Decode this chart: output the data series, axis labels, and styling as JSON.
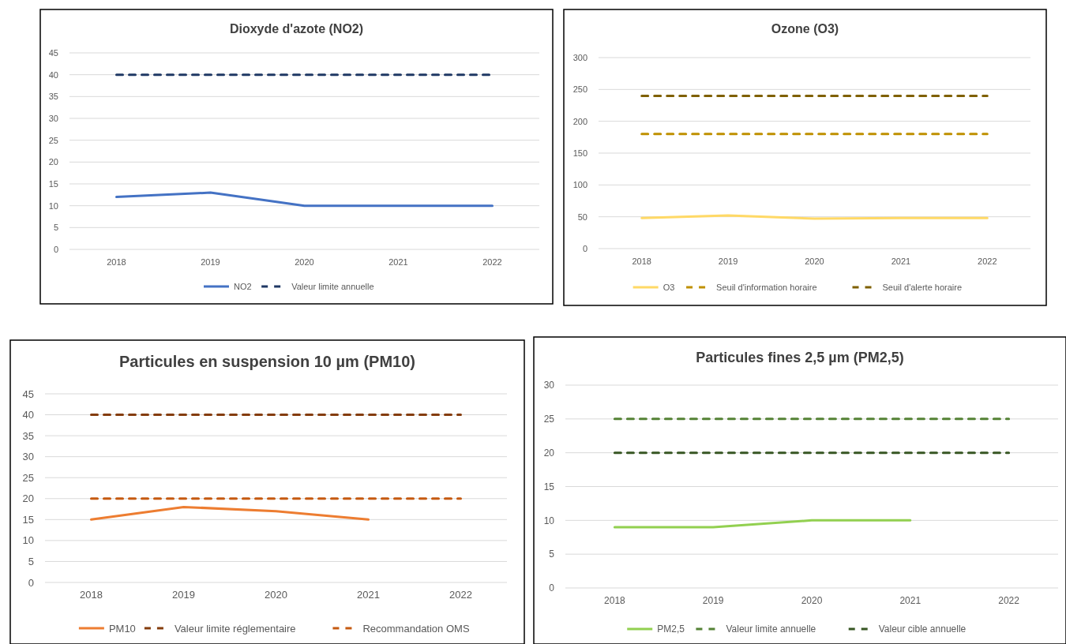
{
  "chart_data": [
    {
      "type": "line",
      "title": "Dioxyde d'azote (NO2)",
      "categories": [
        "2018",
        "2019",
        "2020",
        "2021",
        "2022"
      ],
      "ylim": [
        0,
        45
      ],
      "yticks": [
        0,
        5,
        10,
        15,
        20,
        25,
        30,
        35,
        40,
        45
      ],
      "grid": "y",
      "legend": "bottom",
      "series": [
        {
          "name": "NO2",
          "color": "#4472c4",
          "values": [
            12,
            13,
            10,
            10,
            10
          ],
          "line_style": "solid"
        },
        {
          "name": "Valeur limite annuelle",
          "color": "#1f3864",
          "values": [
            40,
            40,
            40,
            40,
            40
          ],
          "line_style": "dashed"
        }
      ]
    },
    {
      "type": "line",
      "title": "Ozone (O3)",
      "categories": [
        "2018",
        "2019",
        "2020",
        "2021",
        "2022"
      ],
      "ylim": [
        0,
        300
      ],
      "yticks": [
        0,
        50,
        100,
        150,
        200,
        250,
        300
      ],
      "grid": "y",
      "legend": "bottom",
      "series": [
        {
          "name": "O3",
          "color": "#ffd966",
          "values": [
            48,
            52,
            47,
            48,
            48
          ],
          "line_style": "solid"
        },
        {
          "name": "Seuil d'information horaire",
          "color": "#bf9000",
          "values": [
            180,
            180,
            180,
            180,
            180
          ],
          "line_style": "dashed"
        },
        {
          "name": "Seuil d'alerte horaire",
          "color": "#7f6000",
          "values": [
            240,
            240,
            240,
            240,
            240
          ],
          "line_style": "dashed"
        }
      ]
    },
    {
      "type": "line",
      "title": "Particules en suspension 10 µm (PM10)",
      "categories": [
        "2018",
        "2019",
        "2020",
        "2021",
        "2022"
      ],
      "ylim": [
        0,
        45
      ],
      "yticks": [
        0,
        5,
        10,
        15,
        20,
        25,
        30,
        35,
        40,
        45
      ],
      "grid": "y",
      "legend": "bottom",
      "series": [
        {
          "name": "PM10",
          "color": "#ed7d31",
          "values": [
            15,
            18,
            17,
            15,
            null
          ],
          "line_style": "solid"
        },
        {
          "name": "Valeur limite réglementaire",
          "color": "#843c0c",
          "values": [
            40,
            40,
            40,
            40,
            40
          ],
          "line_style": "dashed"
        },
        {
          "name": "Recommandation OMS",
          "color": "#c55a11",
          "values": [
            20,
            20,
            20,
            20,
            20
          ],
          "line_style": "dashed"
        }
      ]
    },
    {
      "type": "line",
      "title": "Particules fines 2,5 µm (PM2,5)",
      "categories": [
        "2018",
        "2019",
        "2020",
        "2021",
        "2022"
      ],
      "ylim": [
        0,
        30
      ],
      "yticks": [
        0,
        5,
        10,
        15,
        20,
        25,
        30
      ],
      "grid": "y",
      "legend": "bottom",
      "series": [
        {
          "name": "PM2,5",
          "color": "#92d050",
          "values": [
            9,
            9,
            10,
            10,
            null
          ],
          "line_style": "solid"
        },
        {
          "name": "Valeur limite annuelle",
          "color": "#548235",
          "values": [
            25,
            25,
            25,
            25,
            25
          ],
          "line_style": "dashed"
        },
        {
          "name": "Valeur cible annuelle",
          "color": "#375623",
          "values": [
            20,
            20,
            20,
            20,
            20
          ],
          "line_style": "dashed"
        }
      ]
    }
  ]
}
